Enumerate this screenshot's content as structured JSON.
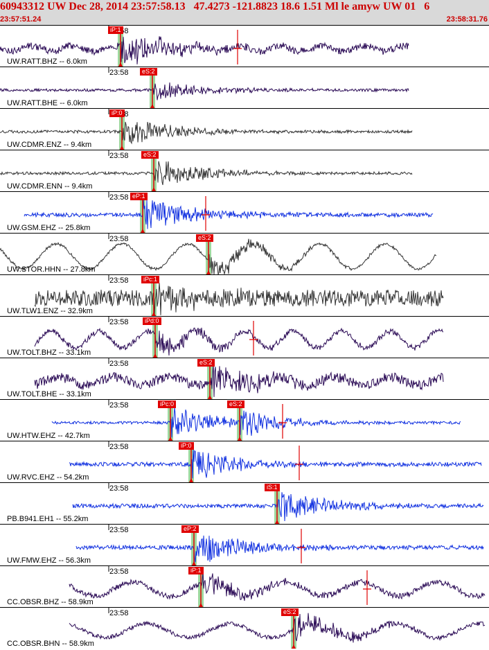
{
  "header": {
    "title": "60943312 UW Dec 28, 2014 23:57:58.13   47.4273 -121.8823 18.6 1.51 Ml le amyw UW 01   6",
    "start_time": "23:57:51.24",
    "end_time": "23:58:31.76",
    "bg_color": "#d9d9d9",
    "text_color": "#cc0000"
  },
  "tick_label": "23:58",
  "colors": {
    "black": "#333333",
    "purple": "#2a0a55",
    "blue": "#1030e0",
    "pick": "#e00000",
    "window": "#9ed89e"
  },
  "panels": [
    {
      "label": "UW.RATT.BHZ -- 6.0km",
      "color": "purple",
      "pick": "iP:1",
      "pick_t": 174,
      "s_t": 220,
      "start": 0,
      "end": 590,
      "noise": 5,
      "burst": 24,
      "period": 60,
      "amp": 4,
      "picks": [
        {
          "t": 174,
          "text": "iP:1"
        }
      ],
      "redcross": 343
    },
    {
      "label": "UW.RATT.BHE -- 6.0km",
      "color": "purple",
      "start": 0,
      "end": 590,
      "noise": 2,
      "burst": 16,
      "period": 0,
      "amp": 0,
      "picks": [
        {
          "t": 220,
          "text": "eS:2"
        }
      ],
      "redcross": null
    },
    {
      "label": "UW.CDMR.ENZ -- 9.4km",
      "color": "black",
      "start": 0,
      "end": 595,
      "noise": 2,
      "burst": 24,
      "period": 0,
      "amp": 0,
      "picks": [
        {
          "t": 176,
          "text": "iP:0"
        }
      ],
      "redcross": null
    },
    {
      "label": "UW.CDMR.ENN -- 9.4km",
      "color": "black",
      "start": 0,
      "end": 595,
      "noise": 2,
      "burst": 22,
      "period": 0,
      "amp": 0,
      "picks": [
        {
          "t": 222,
          "text": "eS:2"
        }
      ],
      "redcross": null
    },
    {
      "label": "UW.GSM.EHZ -- 25.8km",
      "color": "blue",
      "start": 35,
      "end": 625,
      "noise": 3,
      "burst": 26,
      "period": 0,
      "amp": 0,
      "picks": [
        {
          "t": 206,
          "text": "eP:1"
        }
      ],
      "redcross": 297
    },
    {
      "label": "UW.STOR.HHN -- 27.8km",
      "color": "black",
      "start": 0,
      "end": 630,
      "noise": 2,
      "burst": 18,
      "period": 95,
      "amp": 18,
      "picks": [
        {
          "t": 301,
          "text": "eS:2"
        }
      ],
      "redcross": null
    },
    {
      "label": "UW.TLW1.ENZ -- 32.9km",
      "color": "black",
      "start": 50,
      "end": 640,
      "noise": 12,
      "burst": 20,
      "period": 0,
      "amp": 0,
      "picks": [
        {
          "t": 222,
          "text": "iPc:1"
        }
      ],
      "redcross": null
    },
    {
      "label": "UW.TOLT.BHZ -- 33.1km",
      "color": "purple",
      "start": 50,
      "end": 640,
      "noise": 4,
      "burst": 18,
      "period": 70,
      "amp": 12,
      "picks": [
        {
          "t": 224,
          "text": "iPd:0"
        }
      ],
      "redcross": 366
    },
    {
      "label": "UW.TOLT.BHE -- 33.1km",
      "color": "purple",
      "start": 50,
      "end": 640,
      "noise": 7,
      "burst": 24,
      "period": 80,
      "amp": 6,
      "picks": [
        {
          "t": 303,
          "text": "eS:2"
        }
      ],
      "redcross": null
    },
    {
      "label": "UW.HTW.EHZ -- 42.7km",
      "color": "blue",
      "start": 75,
      "end": 665,
      "noise": 2,
      "burst": 24,
      "period": 0,
      "amp": 0,
      "picks": [
        {
          "t": 246,
          "text": "iPc:0"
        },
        {
          "t": 346,
          "text": "eS:2"
        }
      ],
      "redcross": 408
    },
    {
      "label": "UW.RVC.EHZ -- 54.2km",
      "color": "blue",
      "start": 100,
      "end": 695,
      "noise": 3,
      "burst": 24,
      "period": 0,
      "amp": 0,
      "picks": [
        {
          "t": 276,
          "text": "iP:0"
        }
      ],
      "redcross": 432
    },
    {
      "label": "PB.B941.EH1 -- 55.2km",
      "color": "blue",
      "start": 105,
      "end": 698,
      "noise": 3,
      "burst": 24,
      "period": 0,
      "amp": 0,
      "picks": [
        {
          "t": 400,
          "text": "iS:1"
        }
      ],
      "redcross": null
    },
    {
      "label": "UW.FMW.EHZ -- 56.3km",
      "color": "blue",
      "start": 110,
      "end": 698,
      "noise": 3,
      "burst": 26,
      "period": 0,
      "amp": 0,
      "picks": [
        {
          "t": 280,
          "text": "eP:2"
        }
      ],
      "redcross": 435
    },
    {
      "label": "CC.OBSR.BHZ -- 58.9km",
      "color": "purple",
      "start": 100,
      "end": 700,
      "noise": 4,
      "burst": 20,
      "period": 110,
      "amp": 10,
      "picks": [
        {
          "t": 290,
          "text": "iP:1"
        }
      ],
      "redcross": 530
    },
    {
      "label": "CC.OBSR.BHN -- 58.9km",
      "color": "purple",
      "start": 100,
      "end": 700,
      "noise": 3,
      "burst": 20,
      "period": 120,
      "amp": 10,
      "picks": [
        {
          "t": 424,
          "text": "eS:2"
        }
      ],
      "redcross": null
    }
  ]
}
